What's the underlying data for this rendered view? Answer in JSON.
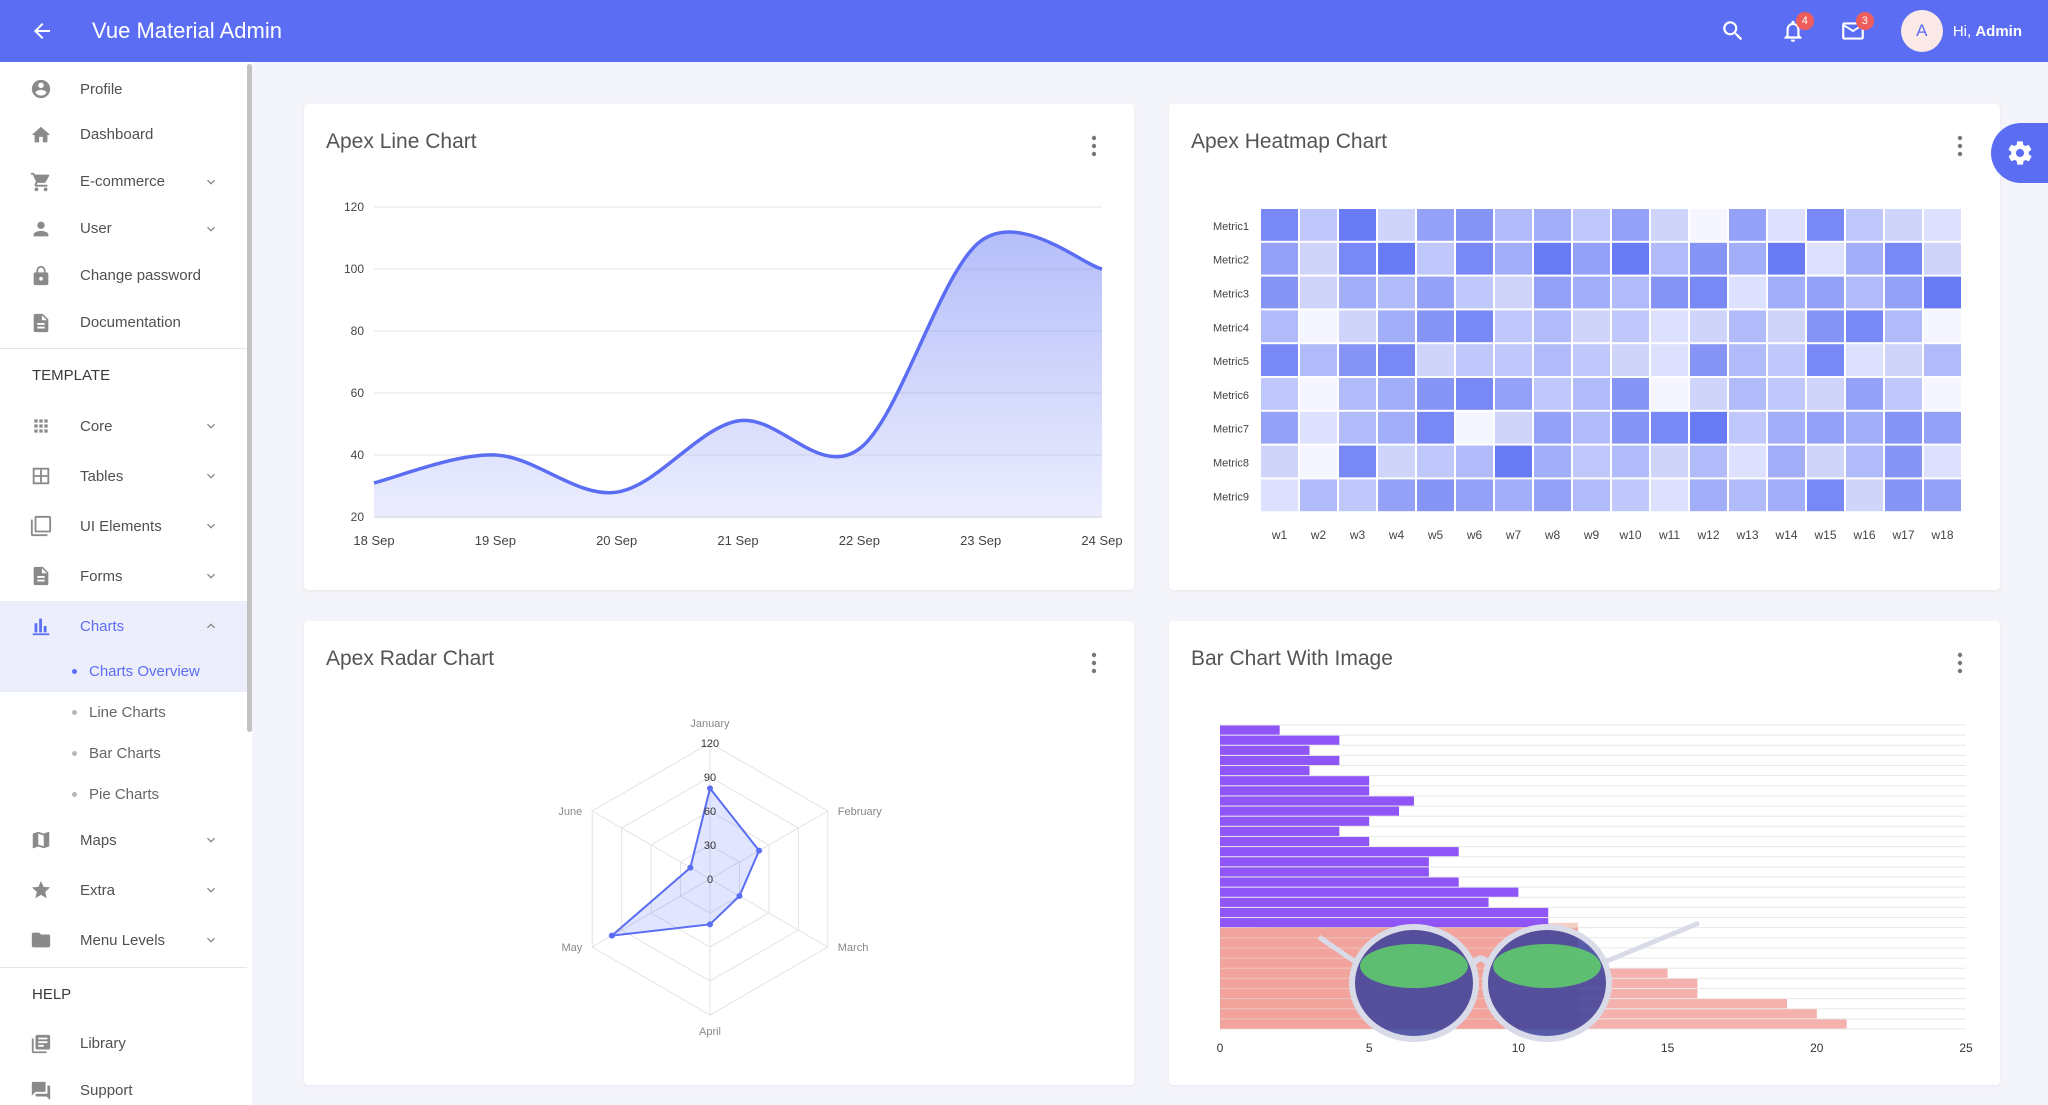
{
  "app": {
    "title": "Vue Material Admin",
    "greeting_prefix": "Hi,",
    "greeting_name": "Admin",
    "avatar_letter": "A",
    "notification_count": "4",
    "mail_count": "3"
  },
  "colors": {
    "primary": "#5b6ef3",
    "badge": "#ef5c5c",
    "background": "#f4f5fa"
  },
  "sidebar": {
    "items": [
      {
        "label": "Profile",
        "icon": "account-circle-icon"
      },
      {
        "label": "Dashboard",
        "icon": "home-icon"
      },
      {
        "label": "E-commerce",
        "icon": "cart-icon",
        "expandable": true
      },
      {
        "label": "User",
        "icon": "person-icon",
        "expandable": true
      },
      {
        "label": "Change password",
        "icon": "lock-icon"
      },
      {
        "label": "Documentation",
        "icon": "document-icon"
      }
    ],
    "template_header": "TEMPLATE",
    "template_items": [
      {
        "label": "Core",
        "icon": "apps-grid-icon",
        "expandable": true
      },
      {
        "label": "Tables",
        "icon": "table-icon",
        "expandable": true
      },
      {
        "label": "UI Elements",
        "icon": "layers-icon",
        "expandable": true
      },
      {
        "label": "Forms",
        "icon": "form-icon",
        "expandable": true
      },
      {
        "label": "Charts",
        "icon": "bar-chart-icon",
        "expanded": true
      }
    ],
    "chart_subitems": [
      "Charts Overview",
      "Line Charts",
      "Bar Charts",
      "Pie Charts"
    ],
    "more_items": [
      {
        "label": "Maps",
        "icon": "map-icon",
        "expandable": true
      },
      {
        "label": "Extra",
        "icon": "star-icon",
        "expandable": true
      },
      {
        "label": "Menu Levels",
        "icon": "folder-icon",
        "expandable": true
      }
    ],
    "help_header": "HELP",
    "help_items": [
      {
        "label": "Library",
        "icon": "library-icon"
      },
      {
        "label": "Support",
        "icon": "support-chat-icon"
      }
    ]
  },
  "cards": {
    "line_title": "Apex Line Chart",
    "heatmap_title": "Apex Heatmap Chart",
    "radar_title": "Apex Radar Chart",
    "bar_title": "Bar Chart With Image"
  },
  "chart_data": [
    {
      "type": "area",
      "title": "Apex Line Chart",
      "categories": [
        "18 Sep",
        "19 Sep",
        "20 Sep",
        "21 Sep",
        "22 Sep",
        "23 Sep",
        "24 Sep"
      ],
      "values": [
        31,
        40,
        28,
        51,
        42,
        109,
        100
      ],
      "ylim": [
        20,
        120
      ],
      "yticks": [
        20,
        40,
        60,
        80,
        100,
        120
      ],
      "color": "#5b6ef3",
      "grid": true
    },
    {
      "type": "heatmap",
      "title": "Apex Heatmap Chart",
      "x": [
        "w1",
        "w2",
        "w3",
        "w4",
        "w5",
        "w6",
        "w7",
        "w8",
        "w9",
        "w10",
        "w11",
        "w12",
        "w13",
        "w14",
        "w15",
        "w16",
        "w17",
        "w18"
      ],
      "series": [
        {
          "name": "Metric1",
          "values": [
            0.8,
            0.3,
            0.9,
            0.2,
            0.6,
            0.7,
            0.4,
            0.5,
            0.3,
            0.6,
            0.2,
            0.0,
            0.6,
            0.1,
            0.8,
            0.3,
            0.2,
            0.1
          ]
        },
        {
          "name": "Metric2",
          "values": [
            0.6,
            0.2,
            0.8,
            0.9,
            0.3,
            0.8,
            0.5,
            0.9,
            0.6,
            0.9,
            0.4,
            0.7,
            0.5,
            0.9,
            0.1,
            0.5,
            0.8,
            0.2
          ]
        },
        {
          "name": "Metric3",
          "values": [
            0.7,
            0.2,
            0.5,
            0.4,
            0.6,
            0.3,
            0.2,
            0.6,
            0.5,
            0.4,
            0.7,
            0.8,
            0.1,
            0.5,
            0.6,
            0.4,
            0.6,
            0.9
          ]
        },
        {
          "name": "Metric4",
          "values": [
            0.4,
            0.0,
            0.2,
            0.5,
            0.7,
            0.8,
            0.3,
            0.4,
            0.2,
            0.3,
            0.1,
            0.2,
            0.4,
            0.2,
            0.7,
            0.8,
            0.4,
            0.0
          ]
        },
        {
          "name": "Metric5",
          "values": [
            0.8,
            0.4,
            0.7,
            0.8,
            0.2,
            0.3,
            0.3,
            0.4,
            0.3,
            0.2,
            0.1,
            0.7,
            0.4,
            0.3,
            0.8,
            0.1,
            0.2,
            0.4
          ]
        },
        {
          "name": "Metric6",
          "values": [
            0.3,
            0.0,
            0.4,
            0.5,
            0.7,
            0.8,
            0.6,
            0.3,
            0.4,
            0.7,
            0.0,
            0.2,
            0.4,
            0.3,
            0.2,
            0.6,
            0.3,
            0.0
          ]
        },
        {
          "name": "Metric7",
          "values": [
            0.6,
            0.1,
            0.4,
            0.5,
            0.8,
            0.0,
            0.2,
            0.6,
            0.4,
            0.7,
            0.8,
            0.9,
            0.3,
            0.5,
            0.6,
            0.5,
            0.7,
            0.6
          ]
        },
        {
          "name": "Metric8",
          "values": [
            0.2,
            0.0,
            0.8,
            0.2,
            0.3,
            0.4,
            0.9,
            0.5,
            0.3,
            0.4,
            0.2,
            0.4,
            0.1,
            0.5,
            0.2,
            0.4,
            0.7,
            0.1
          ]
        },
        {
          "name": "Metric9",
          "values": [
            0.1,
            0.4,
            0.3,
            0.6,
            0.7,
            0.6,
            0.5,
            0.6,
            0.4,
            0.3,
            0.1,
            0.5,
            0.4,
            0.5,
            0.8,
            0.2,
            0.7,
            0.6
          ]
        }
      ],
      "color": "#5b6ef3"
    },
    {
      "type": "radar",
      "title": "Apex Radar Chart",
      "categories": [
        "January",
        "February",
        "March",
        "April",
        "May",
        "June"
      ],
      "values": [
        80,
        50,
        30,
        40,
        100,
        20
      ],
      "max": 120,
      "ticks": [
        0,
        30,
        60,
        90,
        120
      ],
      "color": "#5b6ef3"
    },
    {
      "type": "bar",
      "orientation": "horizontal",
      "title": "Bar Chart With Image",
      "values": [
        2,
        4,
        3,
        4,
        3,
        5,
        5,
        6.5,
        6,
        5,
        4,
        5,
        8,
        7,
        7,
        8,
        10,
        9,
        11,
        11,
        12,
        12,
        11,
        13,
        15,
        16,
        16,
        19,
        20,
        21
      ],
      "xlim": [
        0,
        25
      ],
      "xticks": [
        0,
        5,
        10,
        15,
        20,
        25
      ],
      "top_color": "#8a4cf5",
      "bottom_color": "#f0908a"
    }
  ]
}
